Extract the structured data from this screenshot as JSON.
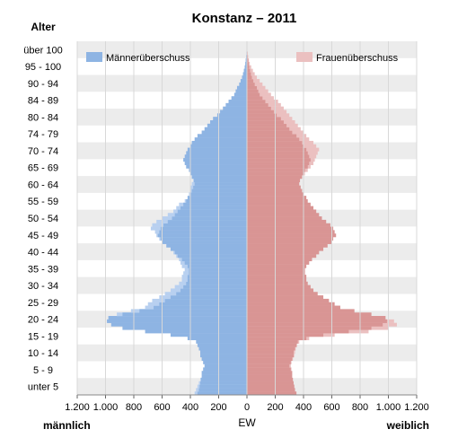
{
  "chart_data": {
    "type": "population-pyramid",
    "title": "Konstanz – 2011",
    "y_axis_title": "Alter",
    "x_axis_title": "EW",
    "left_side_label": "männlich",
    "right_side_label": "weiblich",
    "x_ticks": [
      1200,
      1000,
      800,
      600,
      400,
      200,
      0,
      200,
      400,
      600,
      800,
      1000,
      1200
    ],
    "x_tick_labels": [
      "1.200",
      "1.000",
      "800",
      "600",
      "400",
      "200",
      "0",
      "200",
      "400",
      "600",
      "800",
      "1.000",
      "1.200"
    ],
    "xlim": [
      -1200,
      1200
    ],
    "age_groups": [
      "unter 5",
      "5 - 9",
      "10 - 14",
      "15 - 19",
      "20 - 24",
      "25 - 29",
      "30 - 34",
      "35 - 39",
      "40 - 44",
      "45 - 49",
      "50 - 54",
      "55 - 59",
      "60 - 64",
      "65 - 69",
      "70 - 74",
      "74 - 79",
      "80 - 84",
      "84 - 89",
      "90 - 94",
      "95 - 100",
      "über 100"
    ],
    "legend": {
      "male_surplus": "Männerüberschuss",
      "female_surplus": "Frauenüberschuss"
    },
    "colors": {
      "male": "#8eb4e3",
      "male_surplus": "#b8d0f0",
      "female": "#d99594",
      "female_surplus": "#ebc0c0",
      "band": "#ececec"
    },
    "series": [
      {
        "name": "männlich",
        "values": [
          370,
          360,
          350,
          340,
          330,
          320,
          320,
          310,
          300,
          310,
          320,
          330,
          330,
          340,
          350,
          360,
          420,
          540,
          720,
          880,
          960,
          990,
          980,
          920,
          820,
          720,
          700,
          670,
          620,
          580,
          540,
          510,
          480,
          460,
          460,
          450,
          440,
          460,
          470,
          480,
          500,
          520,
          540,
          570,
          600,
          620,
          640,
          650,
          680,
          670,
          640,
          600,
          560,
          520,
          500,
          480,
          440,
          420,
          410,
          400,
          400,
          390,
          380,
          390,
          400,
          410,
          430,
          440,
          450,
          440,
          430,
          420,
          400,
          390,
          370,
          350,
          320,
          300,
          280,
          260,
          240,
          210,
          190,
          170,
          150,
          130,
          110,
          90,
          80,
          70,
          55,
          45,
          35,
          28,
          22,
          16,
          12,
          9,
          6,
          4,
          2,
          1,
          1
        ]
      },
      {
        "name": "weiblich",
        "values": [
          350,
          340,
          335,
          330,
          325,
          320,
          320,
          315,
          310,
          315,
          325,
          335,
          340,
          345,
          355,
          370,
          440,
          620,
          860,
          1000,
          1060,
          1040,
          980,
          880,
          760,
          660,
          620,
          580,
          540,
          500,
          470,
          450,
          430,
          420,
          420,
          410,
          410,
          420,
          440,
          460,
          490,
          510,
          540,
          570,
          600,
          610,
          630,
          620,
          610,
          590,
          560,
          530,
          510,
          490,
          470,
          450,
          430,
          420,
          400,
          390,
          380,
          370,
          375,
          390,
          410,
          430,
          450,
          470,
          480,
          490,
          500,
          510,
          490,
          470,
          440,
          420,
          400,
          380,
          360,
          340,
          320,
          300,
          280,
          260,
          240,
          220,
          190,
          170,
          150,
          130,
          110,
          90,
          70,
          55,
          42,
          30,
          20,
          14,
          9,
          6,
          3,
          2,
          1
        ]
      }
    ]
  }
}
